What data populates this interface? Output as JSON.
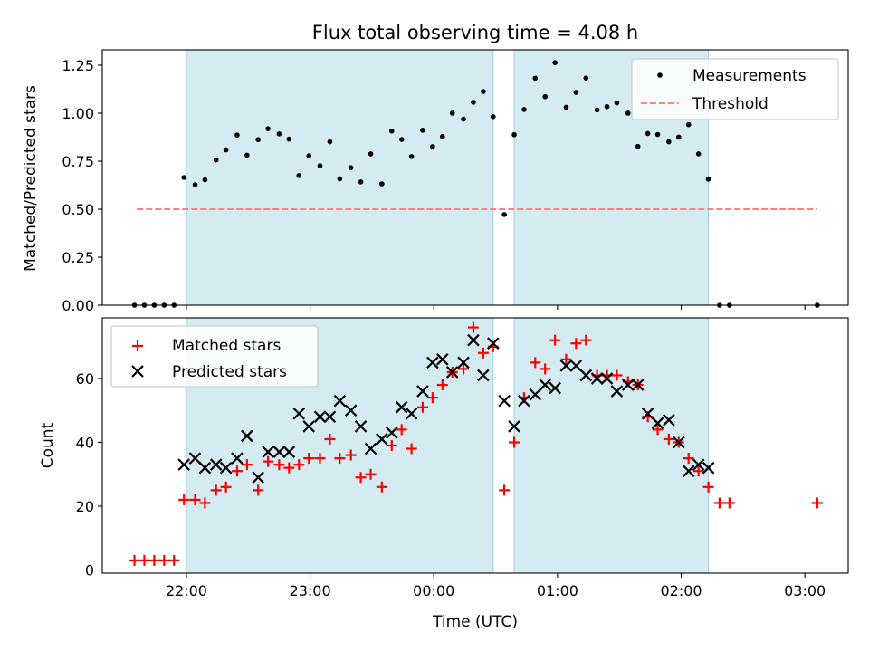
{
  "chart_data": [
    {
      "type": "scatter",
      "title": "Flux total observing time = 4.08 h",
      "ylabel": "Matched/Predicted stars",
      "xlabel": "",
      "xlim": [
        21.32,
        27.35
      ],
      "ylim": [
        0,
        1.33
      ],
      "yticks": [
        0,
        0.25,
        0.5,
        0.75,
        1.0,
        1.25
      ],
      "ytick_labels": [
        "0.00",
        "0.25",
        "0.50",
        "0.75",
        "1.00",
        "1.25"
      ],
      "xticks": [
        22,
        23,
        24,
        25,
        26,
        27
      ],
      "shaded_x_ranges": [
        [
          22.0,
          24.48
        ],
        [
          24.65,
          26.22
        ]
      ],
      "shade_color": "#add8e6",
      "threshold": {
        "value": 0.5,
        "x_range": [
          21.6,
          27.1
        ],
        "color": "#ff8080"
      },
      "legend": {
        "placement": "top-right",
        "entries": [
          "Measurements",
          "Threshold"
        ]
      },
      "series": [
        {
          "name": "Measurements",
          "marker": "dot",
          "color": "#000000",
          "x": [
            21.58,
            21.66,
            21.74,
            21.82,
            21.9,
            21.98,
            22.07,
            22.15,
            22.24,
            22.32,
            22.41,
            22.49,
            22.58,
            22.66,
            22.75,
            22.83,
            22.91,
            22.99,
            23.08,
            23.16,
            23.24,
            23.33,
            23.41,
            23.49,
            23.58,
            23.66,
            23.74,
            23.82,
            23.91,
            23.99,
            24.07,
            24.15,
            24.24,
            24.32,
            24.4,
            24.48,
            24.57,
            24.65,
            24.73,
            24.82,
            24.9,
            24.98,
            25.07,
            25.15,
            25.23,
            25.32,
            25.4,
            25.48,
            25.57,
            25.65,
            25.73,
            25.81,
            25.9,
            25.98,
            26.06,
            26.14,
            26.22,
            26.31,
            26.39,
            27.1
          ],
          "y": [
            0.0,
            0.0,
            0.0,
            0.0,
            0.0,
            0.665,
            0.627,
            0.653,
            0.756,
            0.809,
            0.886,
            0.781,
            0.862,
            0.919,
            0.892,
            0.865,
            0.675,
            0.778,
            0.726,
            0.851,
            0.658,
            0.716,
            0.642,
            0.788,
            0.632,
            0.907,
            0.863,
            0.774,
            0.911,
            0.826,
            0.878,
            1.0,
            0.969,
            1.057,
            1.113,
            0.982,
            0.472,
            0.888,
            1.019,
            1.182,
            1.086,
            1.263,
            1.031,
            1.108,
            1.183,
            1.017,
            1.034,
            1.054,
            1.0,
            0.827,
            0.894,
            0.889,
            0.851,
            0.875,
            0.94,
            0.788,
            0.656,
            0.0,
            0.0,
            0.0
          ]
        }
      ]
    },
    {
      "type": "scatter",
      "title": "",
      "ylabel": "Count",
      "xlabel": "Time (UTC)",
      "xlim": [
        21.32,
        27.35
      ],
      "ylim": [
        -1,
        79
      ],
      "yticks": [
        0,
        20,
        40,
        60
      ],
      "ytick_labels": [
        "0",
        "20",
        "40",
        "60"
      ],
      "xticks": [
        22,
        23,
        24,
        25,
        26,
        27
      ],
      "xtick_labels": [
        "22:00",
        "23:00",
        "00:00",
        "01:00",
        "02:00",
        "03:00"
      ],
      "shaded_x_ranges": [
        [
          22.0,
          24.48
        ],
        [
          24.65,
          26.22
        ]
      ],
      "shade_color": "#add8e6",
      "legend": {
        "placement": "top-left",
        "entries": [
          "Matched stars",
          "Predicted stars"
        ]
      },
      "series": [
        {
          "name": "Matched stars",
          "marker": "plus",
          "color": "#ff0000",
          "x": [
            21.58,
            21.66,
            21.74,
            21.82,
            21.9,
            21.98,
            22.07,
            22.15,
            22.24,
            22.32,
            22.41,
            22.49,
            22.58,
            22.66,
            22.75,
            22.83,
            22.91,
            22.99,
            23.08,
            23.16,
            23.24,
            23.33,
            23.41,
            23.49,
            23.58,
            23.66,
            23.74,
            23.82,
            23.91,
            23.99,
            24.07,
            24.15,
            24.24,
            24.32,
            24.4,
            24.48,
            24.57,
            24.65,
            24.73,
            24.82,
            24.9,
            24.98,
            25.07,
            25.15,
            25.23,
            25.32,
            25.4,
            25.48,
            25.57,
            25.65,
            25.73,
            25.81,
            25.9,
            25.98,
            26.06,
            26.14,
            26.22,
            26.31,
            26.39,
            27.1
          ],
          "y": [
            3,
            3,
            3,
            3,
            3,
            22,
            22,
            21,
            25,
            26,
            31,
            33,
            25,
            34,
            33,
            32,
            33,
            35,
            35,
            41,
            35,
            36,
            29,
            30,
            26,
            39,
            44,
            38,
            51,
            54,
            58,
            62,
            63,
            76,
            68,
            70,
            25,
            40,
            54,
            65,
            63,
            72,
            66,
            71,
            72,
            61,
            61,
            61,
            59,
            58,
            48,
            44,
            41,
            40,
            35,
            31,
            26,
            21,
            21,
            21
          ]
        },
        {
          "name": "Predicted stars",
          "marker": "x",
          "color": "#000000",
          "x": [
            21.98,
            22.07,
            22.15,
            22.24,
            22.32,
            22.41,
            22.49,
            22.58,
            22.66,
            22.75,
            22.83,
            22.91,
            22.99,
            23.08,
            23.16,
            23.24,
            23.33,
            23.41,
            23.49,
            23.58,
            23.66,
            23.74,
            23.82,
            23.91,
            23.99,
            24.07,
            24.15,
            24.24,
            24.32,
            24.4,
            24.48,
            24.57,
            24.65,
            24.73,
            24.82,
            24.9,
            24.98,
            25.07,
            25.15,
            25.23,
            25.32,
            25.4,
            25.48,
            25.57,
            25.65,
            25.73,
            25.81,
            25.9,
            25.98,
            26.06,
            26.14,
            26.22
          ],
          "y": [
            33,
            35,
            32,
            33,
            32,
            35,
            42,
            29,
            37,
            37,
            37,
            49,
            45,
            48,
            48,
            53,
            50,
            45,
            38,
            41,
            43,
            51,
            49,
            56,
            65,
            66,
            62,
            65,
            72,
            61,
            71,
            53,
            45,
            53,
            55,
            58,
            57,
            64,
            64,
            61,
            60,
            60,
            56,
            58,
            58,
            49,
            46,
            47,
            40,
            31,
            33,
            32
          ]
        }
      ]
    }
  ]
}
